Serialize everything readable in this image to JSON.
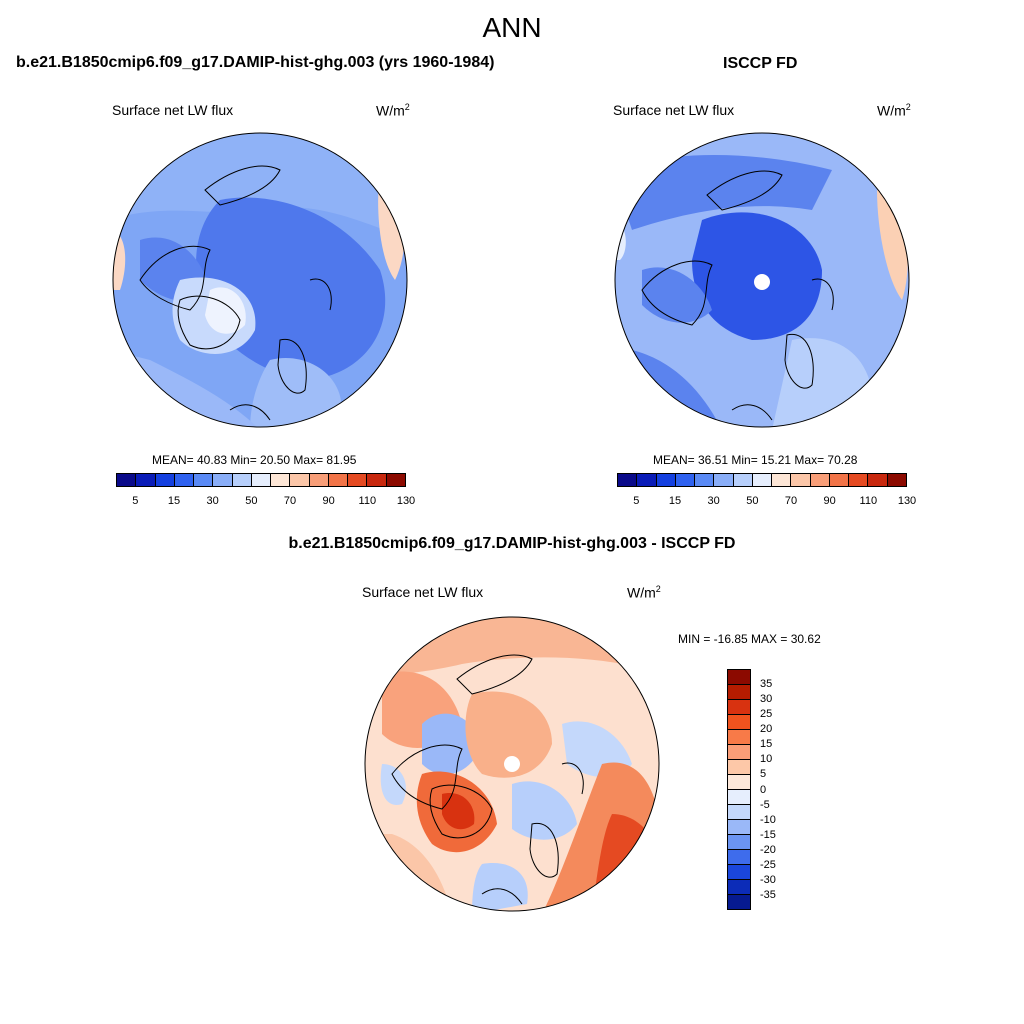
{
  "title": "ANN",
  "panel_left": {
    "title": "b.e21.B1850cmip6.f09_g17.DAMIP-hist-ghg.003 (yrs 1960-1984)",
    "variable": "Surface net LW flux",
    "units": "W/m",
    "units_exp": "2",
    "stats": "MEAN=  40.83  Min=  20.50  Max=  81.95",
    "colorbar_ticks": [
      "5",
      "15",
      "30",
      "50",
      "70",
      "90",
      "110",
      "130"
    ]
  },
  "panel_right": {
    "title": "ISCCP FD",
    "variable": "Surface net LW flux",
    "units": "W/m",
    "units_exp": "2",
    "stats": "MEAN=  36.51  Min=  15.21  Max=  70.28",
    "colorbar_ticks": [
      "5",
      "15",
      "30",
      "50",
      "70",
      "90",
      "110",
      "130"
    ]
  },
  "panel_diff": {
    "title": "b.e21.B1850cmip6.f09_g17.DAMIP-hist-ghg.003 - ISCCP FD",
    "variable": "Surface net LW flux",
    "units": "W/m",
    "units_exp": "2",
    "stats": "MIN = -16.85 MAX =  30.62",
    "colorbar_ticks": [
      "35",
      "30",
      "25",
      "20",
      "15",
      "10",
      "5",
      "0",
      "-5",
      "-10",
      "-15",
      "-20",
      "-25",
      "-30",
      "-35"
    ]
  },
  "colors": {
    "abs_scale": [
      "#0a0a8a",
      "#0a1cb8",
      "#1440e0",
      "#2f62f0",
      "#5a8af5",
      "#8aaef8",
      "#b7cffb",
      "#e6eefd",
      "#fde6d6",
      "#fbc6a8",
      "#f89e78",
      "#f27448",
      "#e54a22",
      "#c8280e",
      "#8c0a00"
    ],
    "diff_scale": [
      "#8c0a00",
      "#b51c00",
      "#d83210",
      "#f0531e",
      "#f87a48",
      "#fb9e78",
      "#fdc8a8",
      "#fde8da",
      "#e6eefd",
      "#c4d8fb",
      "#9ab8f8",
      "#6b94f2",
      "#3e6cec",
      "#1a46dc",
      "#0c2cb8",
      "#061a90"
    ]
  }
}
